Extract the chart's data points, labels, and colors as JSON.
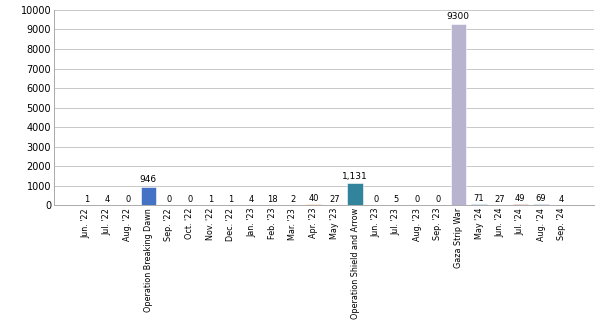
{
  "categories": [
    "Jun. '22",
    "Jul. '22",
    "Aug. '22",
    "Operation Breaking Dawn",
    "Sep. '22",
    "Oct. '22",
    "Nov. '22",
    "Dec. '22",
    "Jan. '23",
    "Feb. '23",
    "Mar. '23",
    "Apr. '23",
    "May '23",
    "Operation Shield and Arrow",
    "Jun. '23",
    "Jul. '23",
    "Aug. '23",
    "Sep. '23",
    "Gaza Strip War",
    "May '24",
    "Jun. '24",
    "Jul. '24",
    "Aug. '24",
    "Sep. '24"
  ],
  "values": [
    1,
    4,
    0,
    946,
    0,
    0,
    1,
    1,
    4,
    18,
    2,
    40,
    27,
    1131,
    0,
    5,
    0,
    0,
    9300,
    71,
    27,
    49,
    69,
    4
  ],
  "bar_colors": [
    "#7030a0",
    "#4bacc6",
    "#c0504d",
    "#4472c4",
    "#9bbb59",
    "#4bacc6",
    "#8064a2",
    "#f79646",
    "#c0504d",
    "#9bbb59",
    "#4bacc6",
    "#f79646",
    "#c0504d",
    "#31849b",
    "#9bbb59",
    "#f79646",
    "#c0504d",
    "#9bbb59",
    "#b8b4d0",
    "#31849b",
    "#f79646",
    "#c0504d",
    "#4472c4",
    "#9bbb59"
  ],
  "value_labels": [
    "1",
    "4",
    "0",
    "946",
    "0",
    "0",
    "1",
    "1",
    "4",
    "18",
    "2",
    "40",
    "27",
    "1,131",
    "0",
    "5",
    "0",
    "0",
    "9300",
    "71",
    "27",
    "49",
    "69",
    "4"
  ],
  "ylim": [
    0,
    10000
  ],
  "yticks": [
    0,
    1000,
    2000,
    3000,
    4000,
    5000,
    6000,
    7000,
    8000,
    9000,
    10000
  ],
  "bg_color": "#ffffff",
  "grid_color": "#c8c8c8"
}
